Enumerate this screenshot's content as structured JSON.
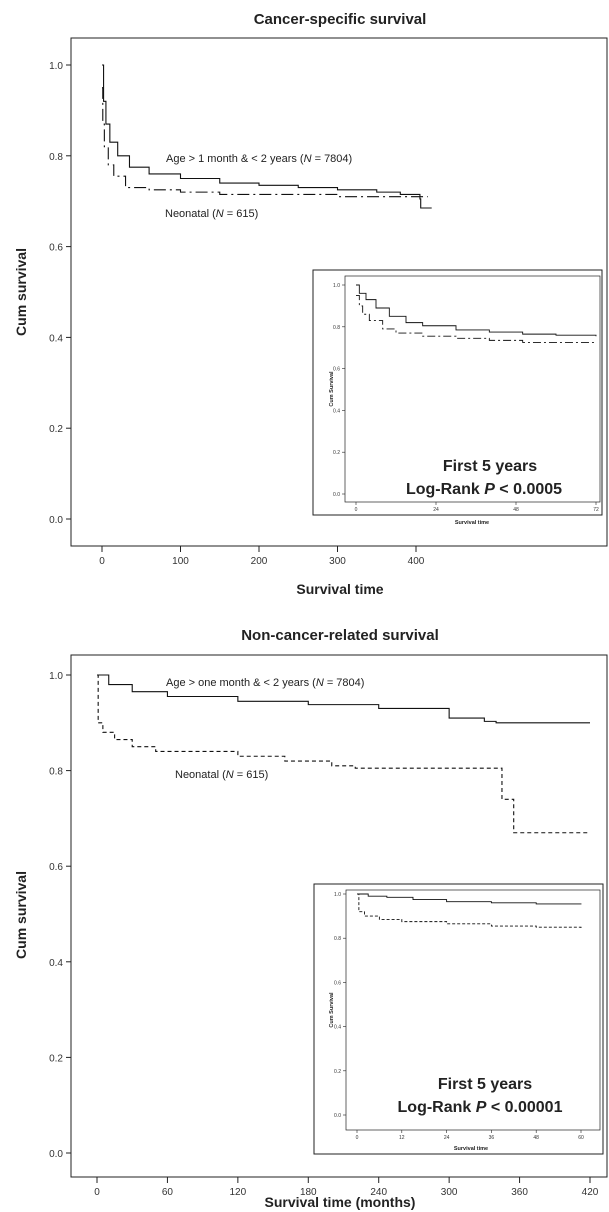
{
  "chart_data": [
    {
      "type": "line",
      "title": "Cancer-specific survival",
      "xlabel": "Survival time",
      "ylabel": "Cum survival",
      "xlim": [
        0,
        440
      ],
      "ylim": [
        0.0,
        1.0
      ],
      "xticks": [
        "0",
        "100",
        "200",
        "300",
        "400"
      ],
      "yticks": [
        "0.0",
        "0.2",
        "0.4",
        "0.6",
        "0.8",
        "1.0"
      ],
      "series": [
        {
          "label": "Age > 1 month & < 2 years (N = 7804)",
          "style": "solid",
          "points": [
            [
              0,
              1.0
            ],
            [
              2,
              0.92
            ],
            [
              5,
              0.87
            ],
            [
              10,
              0.83
            ],
            [
              20,
              0.8
            ],
            [
              35,
              0.775
            ],
            [
              60,
              0.76
            ],
            [
              100,
              0.75
            ],
            [
              150,
              0.74
            ],
            [
              200,
              0.735
            ],
            [
              250,
              0.73
            ],
            [
              300,
              0.725
            ],
            [
              350,
              0.72
            ],
            [
              380,
              0.715
            ],
            [
              405,
              0.705
            ],
            [
              406,
              0.685
            ],
            [
              420,
              0.685
            ]
          ]
        },
        {
          "label": "Neonatal (N = 615)",
          "style": "dashdot",
          "points": [
            [
              0,
              0.95
            ],
            [
              1,
              0.87
            ],
            [
              3,
              0.82
            ],
            [
              8,
              0.78
            ],
            [
              15,
              0.755
            ],
            [
              30,
              0.73
            ],
            [
              60,
              0.725
            ],
            [
              100,
              0.72
            ],
            [
              150,
              0.715
            ],
            [
              200,
              0.715
            ],
            [
              300,
              0.71
            ],
            [
              415,
              0.71
            ]
          ]
        }
      ],
      "inset": {
        "xlabel": "Survival time",
        "ylabel": "Cum Survival",
        "xlim": [
          0,
          72
        ],
        "ylim": [
          0.0,
          1.0
        ],
        "xticks": [
          "0",
          "24",
          "48",
          "72"
        ],
        "yticks": [
          "0.0",
          "0.2",
          "0.4",
          "0.6",
          "0.8",
          "1.0"
        ],
        "text_line1": "First 5 years",
        "text_line2": "Log-Rank P < 0.0005",
        "series": [
          {
            "style": "solid",
            "points": [
              [
                0,
                1.0
              ],
              [
                1,
                0.96
              ],
              [
                3,
                0.93
              ],
              [
                6,
                0.89
              ],
              [
                10,
                0.85
              ],
              [
                15,
                0.82
              ],
              [
                20,
                0.805
              ],
              [
                30,
                0.785
              ],
              [
                40,
                0.775
              ],
              [
                50,
                0.765
              ],
              [
                60,
                0.76
              ],
              [
                72,
                0.755
              ]
            ]
          },
          {
            "style": "dashdot",
            "points": [
              [
                0,
                0.95
              ],
              [
                1,
                0.9
              ],
              [
                2,
                0.86
              ],
              [
                4,
                0.83
              ],
              [
                8,
                0.79
              ],
              [
                12,
                0.77
              ],
              [
                20,
                0.755
              ],
              [
                30,
                0.745
              ],
              [
                40,
                0.735
              ],
              [
                50,
                0.725
              ],
              [
                60,
                0.725
              ],
              [
                72,
                0.725
              ]
            ]
          }
        ]
      }
    },
    {
      "type": "line",
      "title": "Non-cancer-related survival",
      "xlabel": "Survival time (months)",
      "ylabel": "Cum survival",
      "xlim": [
        -15,
        435
      ],
      "ylim": [
        0.0,
        1.0
      ],
      "xticks": [
        "0",
        "60",
        "120",
        "180",
        "240",
        "300",
        "360",
        "420"
      ],
      "yticks": [
        "0.0",
        "0.2",
        "0.4",
        "0.6",
        "0.8",
        "1.0"
      ],
      "series": [
        {
          "label": "Age > one month & < 2 years (N = 7804)",
          "style": "solid",
          "points": [
            [
              0,
              1.0
            ],
            [
              10,
              0.98
            ],
            [
              30,
              0.965
            ],
            [
              60,
              0.955
            ],
            [
              120,
              0.945
            ],
            [
              180,
              0.938
            ],
            [
              240,
              0.93
            ],
            [
              300,
              0.91
            ],
            [
              330,
              0.903
            ],
            [
              340,
              0.9
            ],
            [
              420,
              0.9
            ]
          ]
        },
        {
          "label": "Neonatal (N = 615)",
          "style": "dashed",
          "points": [
            [
              0,
              1.0
            ],
            [
              1,
              0.9
            ],
            [
              5,
              0.88
            ],
            [
              15,
              0.865
            ],
            [
              30,
              0.85
            ],
            [
              50,
              0.84
            ],
            [
              100,
              0.84
            ],
            [
              120,
              0.83
            ],
            [
              160,
              0.82
            ],
            [
              200,
              0.81
            ],
            [
              220,
              0.805
            ],
            [
              340,
              0.805
            ],
            [
              345,
              0.74
            ],
            [
              355,
              0.67
            ],
            [
              420,
              0.67
            ]
          ]
        }
      ],
      "inset": {
        "xlabel": "Survival time",
        "ylabel": "Cum Survival",
        "xlim": [
          0,
          60
        ],
        "ylim": [
          0.0,
          1.0
        ],
        "xticks": [
          "0",
          "12",
          "24",
          "36",
          "48",
          "60"
        ],
        "yticks": [
          "0.0",
          "0.2",
          "0.4",
          "0.6",
          "0.8",
          "1.0"
        ],
        "text_line1": "First 5 years",
        "text_line2": "Log-Rank P < 0.00001",
        "series": [
          {
            "style": "solid",
            "points": [
              [
                0,
                1.0
              ],
              [
                3,
                0.99
              ],
              [
                8,
                0.985
              ],
              [
                15,
                0.975
              ],
              [
                24,
                0.965
              ],
              [
                36,
                0.96
              ],
              [
                48,
                0.955
              ],
              [
                60,
                0.953
              ]
            ]
          },
          {
            "style": "dashed",
            "points": [
              [
                0,
                1.0
              ],
              [
                0.5,
                0.92
              ],
              [
                2,
                0.9
              ],
              [
                6,
                0.885
              ],
              [
                12,
                0.875
              ],
              [
                24,
                0.865
              ],
              [
                36,
                0.855
              ],
              [
                48,
                0.85
              ],
              [
                60,
                0.84
              ]
            ]
          }
        ]
      }
    }
  ]
}
